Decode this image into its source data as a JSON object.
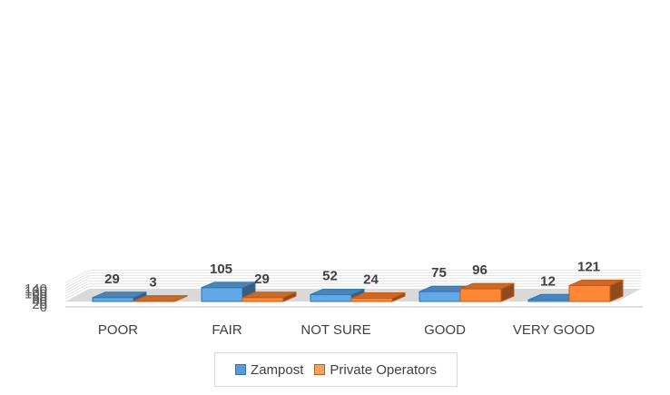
{
  "chart_data": {
    "type": "bar",
    "title": "",
    "xlabel": "",
    "ylabel": "",
    "ylim": [
      0,
      140
    ],
    "yticks": [
      0,
      20,
      40,
      60,
      80,
      100,
      120,
      140
    ],
    "grid": true,
    "three_d": true,
    "legend_position": "bottom",
    "categories": [
      "POOR",
      "FAIR",
      "NOT SURE",
      "GOOD",
      "VERY GOOD"
    ],
    "series": [
      {
        "name": "Zampost",
        "values": [
          29,
          105,
          52,
          75,
          12
        ],
        "color": "#5b9bd5"
      },
      {
        "name": "Private Operators",
        "values": [
          3,
          29,
          24,
          96,
          121
        ],
        "color": "#ed7d31"
      }
    ]
  }
}
